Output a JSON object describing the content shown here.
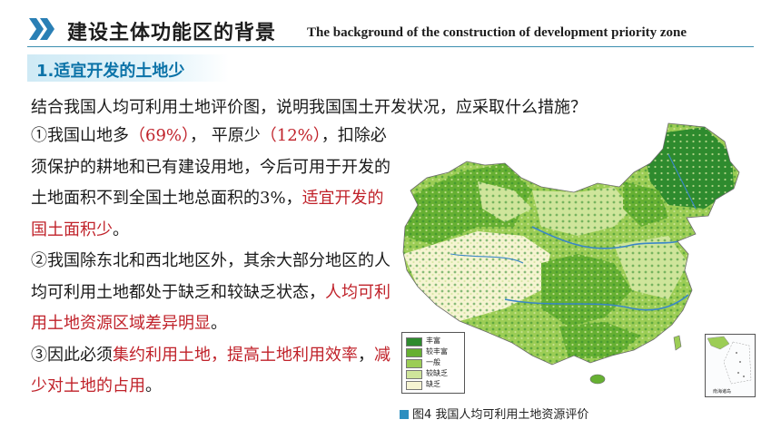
{
  "header": {
    "title_cn": "建设主体功能区的背景",
    "title_en": "The background of the construction of development priority zone"
  },
  "section": {
    "title": "1.适宜开发的土地少"
  },
  "question": "结合我国人均可利用土地评价图，说明我国国土开发状况，应采取什么措施？",
  "points": {
    "p1": {
      "prefix": "①我国山地多",
      "mountain_pct": "（69%）",
      "mid": "， 平原少",
      "plain_pct": "（12%）",
      "tail": "，扣除必须保护的耕地和已有建设用地，今后可用于开发的土地面积不到全国土地总面积的3%，",
      "conclusion": "适宜开发的国土面积少",
      "end": "。"
    },
    "p2": {
      "text": "②我国除东北和西北地区外，其余大部分地区的人均可利用土地都处于缺乏和较缺乏状态，",
      "conclusion": "人均可利用土地资源区域差异明显",
      "end": "。"
    },
    "p3": {
      "prefix": "③因此必须",
      "measure": "集约利用土地，提高土地利用效率",
      "mid": "，",
      "measure2": "减少对土地的占用",
      "end": "。"
    }
  },
  "map": {
    "legend": [
      {
        "label": "丰富",
        "color": "#2e8b2e"
      },
      {
        "label": "较丰富",
        "color": "#66b032"
      },
      {
        "label": "一般",
        "color": "#9ccd55"
      },
      {
        "label": "较缺乏",
        "color": "#cfe59b"
      },
      {
        "label": "缺乏",
        "color": "#f6f4d2"
      }
    ],
    "inset_label": "南海诸岛"
  },
  "caption": "图4 我国人均可利用土地资源评价",
  "colors": {
    "accent": "#0c73a8",
    "highlight": "#c0222a",
    "rule": "#3c8fb0"
  }
}
